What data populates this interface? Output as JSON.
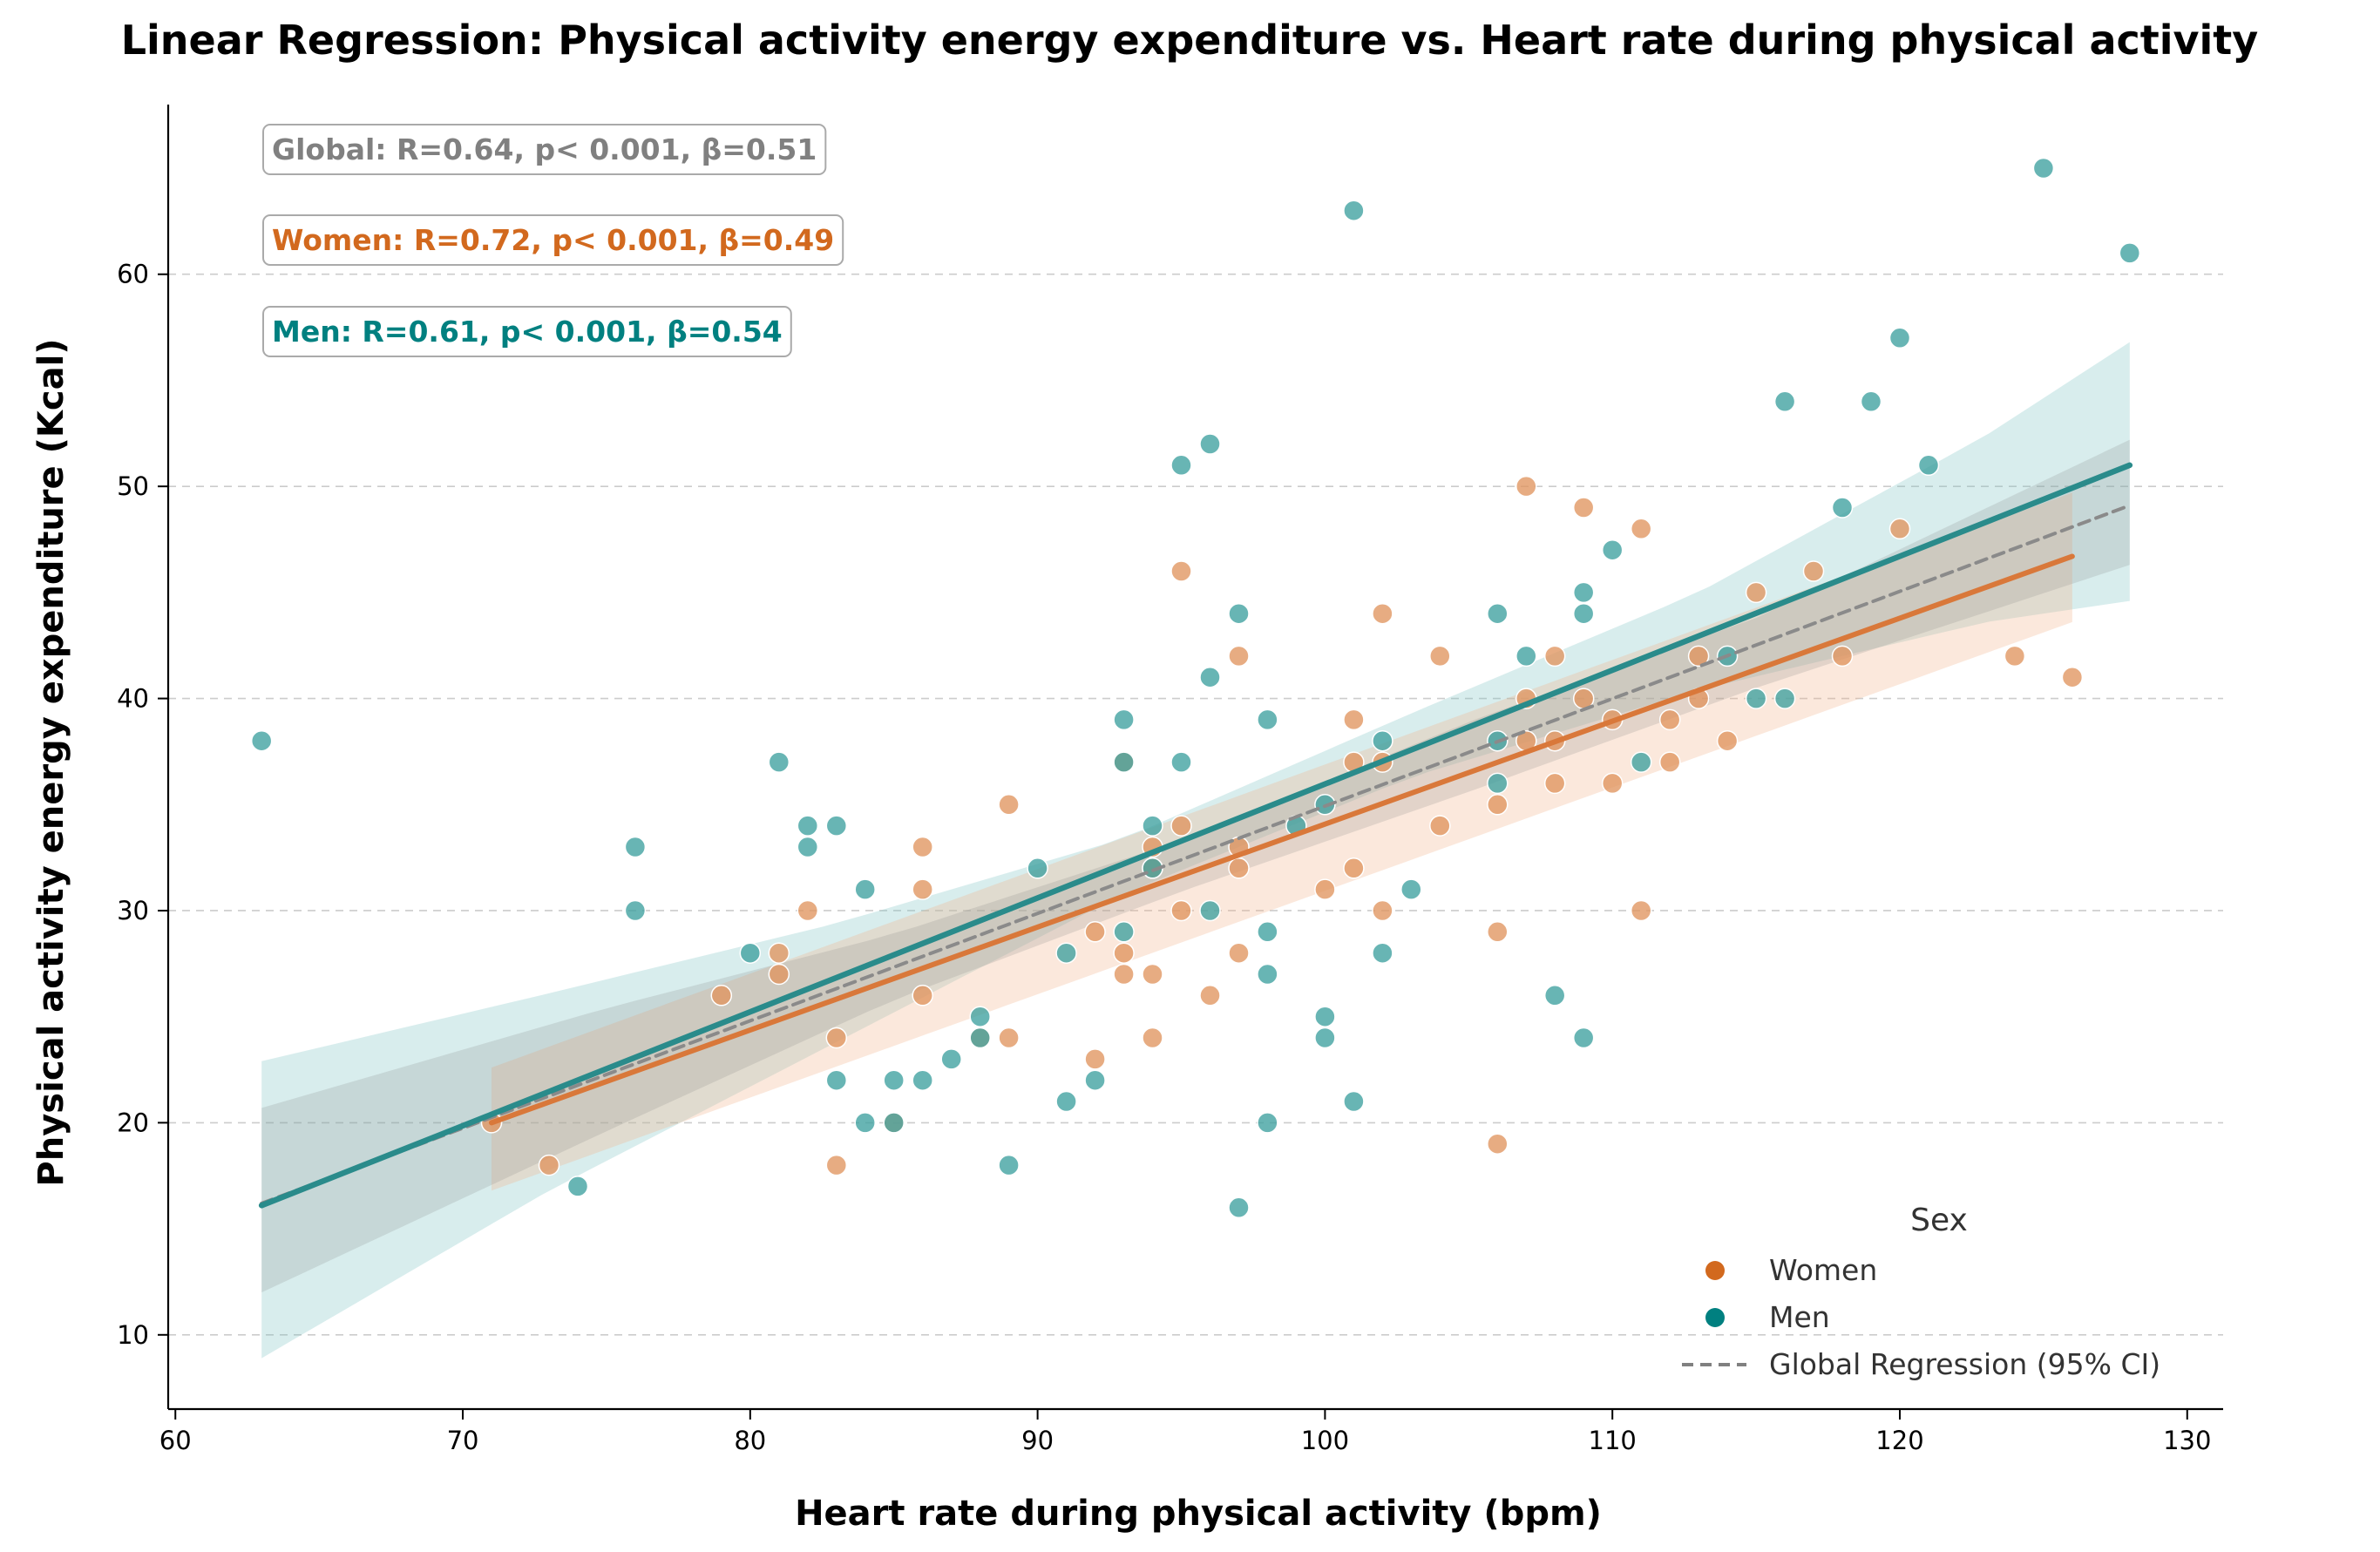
{
  "chart_data": {
    "type": "scatter",
    "title": "Linear Regression: Physical activity energy expenditure vs. Heart rate during physical activity",
    "xlabel": "Heart rate during physical activity (bpm)",
    "ylabel": "Physical activity energy expenditure (Kcal)",
    "xlim": [
      59.75,
      131.25
    ],
    "ylim": [
      6.5,
      68.0
    ],
    "x_ticks": [
      60,
      70,
      80,
      90,
      100,
      110,
      120,
      130
    ],
    "y_ticks": [
      10,
      20,
      30,
      40,
      50,
      60
    ],
    "grid": "horizontal dashed",
    "legend": {
      "title": "Sex",
      "placement": "lower-right",
      "entries": [
        "Women",
        "Men",
        "Global Regression (95% CI)"
      ]
    },
    "colors": {
      "women": "#d2691e",
      "men": "#008080",
      "global": "#808080",
      "women_point": "#e0955f",
      "men_point": "#3ea09f"
    },
    "annotations": [
      {
        "key": "global",
        "text": "Global: R=0.64, p< 0.001, β=0.51",
        "color": "#808080"
      },
      {
        "key": "women",
        "text": "Women: R=0.72, p< 0.001, β=0.49",
        "color": "#d2691e"
      },
      {
        "key": "men",
        "text": "Men: R=0.61, p< 0.001, β=0.54",
        "color": "#008080"
      }
    ],
    "series": [
      {
        "name": "Women",
        "points": [
          [
            71,
            20
          ],
          [
            73,
            18
          ],
          [
            79,
            26
          ],
          [
            81,
            28
          ],
          [
            81,
            27
          ],
          [
            82,
            30
          ],
          [
            83,
            24
          ],
          [
            83,
            18
          ],
          [
            85,
            20
          ],
          [
            86,
            33
          ],
          [
            86,
            31
          ],
          [
            86,
            26
          ],
          [
            88,
            24
          ],
          [
            89,
            35
          ],
          [
            89,
            24
          ],
          [
            92,
            29
          ],
          [
            92,
            23
          ],
          [
            93,
            37
          ],
          [
            93,
            28
          ],
          [
            93,
            27
          ],
          [
            94,
            33
          ],
          [
            94,
            32
          ],
          [
            94,
            27
          ],
          [
            94,
            24
          ],
          [
            95,
            46
          ],
          [
            95,
            34
          ],
          [
            95,
            30
          ],
          [
            96,
            26
          ],
          [
            97,
            42
          ],
          [
            97,
            33
          ],
          [
            97,
            32
          ],
          [
            97,
            28
          ],
          [
            100,
            31
          ],
          [
            101,
            39
          ],
          [
            101,
            37
          ],
          [
            101,
            32
          ],
          [
            102,
            44
          ],
          [
            102,
            37
          ],
          [
            102,
            30
          ],
          [
            104,
            42
          ],
          [
            104,
            34
          ],
          [
            106,
            35
          ],
          [
            106,
            29
          ],
          [
            106,
            19
          ],
          [
            107,
            50
          ],
          [
            107,
            40
          ],
          [
            107,
            38
          ],
          [
            108,
            42
          ],
          [
            108,
            38
          ],
          [
            108,
            36
          ],
          [
            109,
            49
          ],
          [
            109,
            40
          ],
          [
            110,
            39
          ],
          [
            110,
            36
          ],
          [
            111,
            48
          ],
          [
            111,
            30
          ],
          [
            112,
            39
          ],
          [
            112,
            37
          ],
          [
            113,
            42
          ],
          [
            113,
            40
          ],
          [
            114,
            38
          ],
          [
            115,
            45
          ],
          [
            117,
            46
          ],
          [
            118,
            42
          ],
          [
            120,
            48
          ],
          [
            124,
            42
          ],
          [
            126,
            41
          ]
        ],
        "fit_x": [
          71,
          126
        ],
        "fit_y": [
          20.0,
          46.7
        ],
        "ci_x": [
          71,
          126
        ],
        "ci_lower": [
          16.8,
          43.6
        ],
        "ci_upper": [
          22.6,
          49.7
        ]
      },
      {
        "name": "Men",
        "points": [
          [
            63,
            38
          ],
          [
            74,
            17
          ],
          [
            76,
            33
          ],
          [
            76,
            30
          ],
          [
            80,
            28
          ],
          [
            81,
            37
          ],
          [
            82,
            34
          ],
          [
            82,
            33
          ],
          [
            83,
            34
          ],
          [
            83,
            22
          ],
          [
            84,
            31
          ],
          [
            84,
            20
          ],
          [
            85,
            22
          ],
          [
            85,
            20
          ],
          [
            86,
            22
          ],
          [
            87,
            23
          ],
          [
            88,
            25
          ],
          [
            88,
            24
          ],
          [
            89,
            18
          ],
          [
            90,
            32
          ],
          [
            91,
            28
          ],
          [
            91,
            21
          ],
          [
            92,
            22
          ],
          [
            93,
            39
          ],
          [
            93,
            37
          ],
          [
            93,
            29
          ],
          [
            94,
            34
          ],
          [
            94,
            32
          ],
          [
            95,
            51
          ],
          [
            95,
            37
          ],
          [
            96,
            52
          ],
          [
            96,
            41
          ],
          [
            96,
            30
          ],
          [
            97,
            44
          ],
          [
            97,
            16
          ],
          [
            98,
            39
          ],
          [
            98,
            29
          ],
          [
            98,
            27
          ],
          [
            98,
            20
          ],
          [
            99,
            34
          ],
          [
            100,
            35
          ],
          [
            100,
            25
          ],
          [
            100,
            24
          ],
          [
            101,
            63
          ],
          [
            101,
            21
          ],
          [
            102,
            38
          ],
          [
            102,
            28
          ],
          [
            103,
            31
          ],
          [
            106,
            44
          ],
          [
            106,
            38
          ],
          [
            106,
            36
          ],
          [
            107,
            42
          ],
          [
            108,
            26
          ],
          [
            109,
            45
          ],
          [
            109,
            44
          ],
          [
            109,
            24
          ],
          [
            110,
            47
          ],
          [
            111,
            37
          ],
          [
            114,
            42
          ],
          [
            115,
            40
          ],
          [
            116,
            54
          ],
          [
            116,
            40
          ],
          [
            118,
            49
          ],
          [
            119,
            54
          ],
          [
            120,
            57
          ],
          [
            121,
            51
          ],
          [
            125,
            65
          ],
          [
            128,
            61
          ]
        ],
        "fit_x": [
          63,
          128
        ],
        "fit_y": [
          16.1,
          51.0
        ],
        "ci_x": [
          63,
          73,
          83,
          93,
          103,
          113,
          123,
          128
        ],
        "ci_lower": [
          8.9,
          16.8,
          23.8,
          30.8,
          36.3,
          40.4,
          43.6,
          44.6
        ],
        "ci_upper": [
          22.9,
          26.1,
          29.4,
          33.4,
          39.3,
          45.0,
          52.4,
          56.8
        ]
      },
      {
        "name": "Global Regression (95% CI)",
        "fit_x": [
          63,
          128
        ],
        "fit_y": [
          16.2,
          49.1
        ],
        "ci_x": [
          63,
          75,
          85,
          95,
          105,
          115,
          128
        ],
        "ci_lower": [
          12.0,
          19.6,
          25.8,
          30.9,
          35.6,
          40.5,
          46.3
        ],
        "ci_upper": [
          20.7,
          25.4,
          28.9,
          33.3,
          38.9,
          43.8,
          52.2
        ]
      }
    ]
  }
}
